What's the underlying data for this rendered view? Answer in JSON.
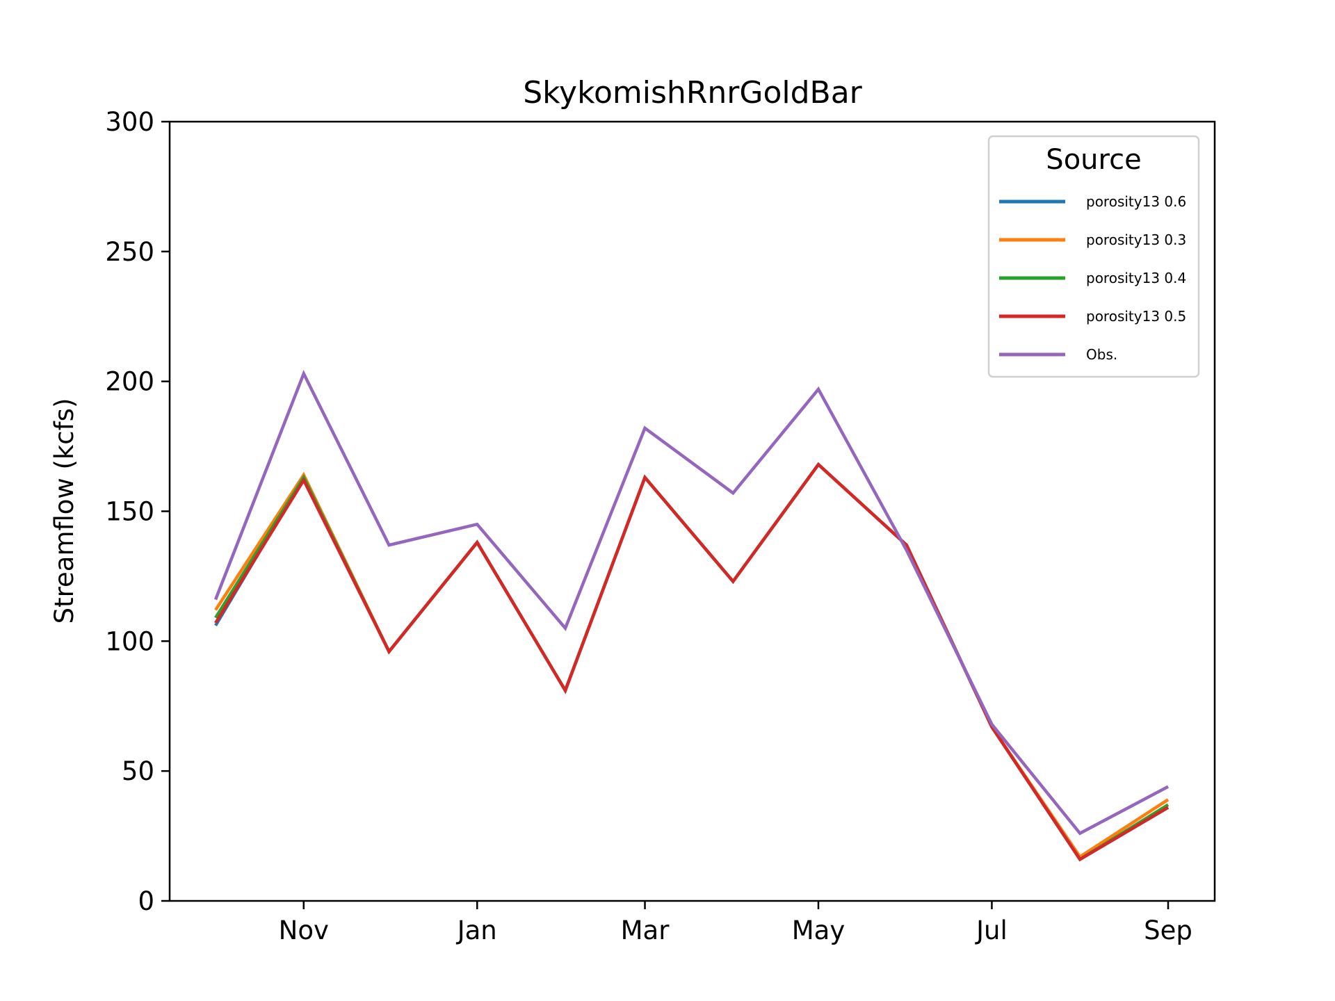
{
  "chart_data": {
    "type": "line",
    "title": "SkykomishRnrGoldBar",
    "xlabel": "",
    "ylabel": "Streamflow (kcfs)",
    "ylim": [
      0,
      300
    ],
    "yticks": [
      0,
      50,
      100,
      150,
      200,
      250,
      300
    ],
    "x": [
      "2000-10-01",
      "2000-11-01",
      "2000-12-01",
      "2001-01-01",
      "2001-02-01",
      "2001-03-01",
      "2001-04-01",
      "2001-05-01",
      "2001-06-01",
      "2001-07-01",
      "2001-08-01",
      "2001-09-01"
    ],
    "xticks": [
      {
        "date": "2000-11-01",
        "label": "Nov"
      },
      {
        "date": "2001-01-01",
        "label": "Jan"
      },
      {
        "date": "2001-03-01",
        "label": "Mar"
      },
      {
        "date": "2001-05-01",
        "label": "May"
      },
      {
        "date": "2001-07-01",
        "label": "Jul"
      },
      {
        "date": "2001-09-01",
        "label": "Sep"
      }
    ],
    "legend": {
      "title": "Source",
      "placement": "top-right"
    },
    "series": [
      {
        "name": "porosity13 0.6",
        "color": "#1f77b4",
        "values": [
          106,
          163,
          96,
          138,
          81,
          163,
          123,
          168,
          137,
          67,
          16,
          36
        ]
      },
      {
        "name": "porosity13 0.3",
        "color": "#ff7f0e",
        "values": [
          112,
          164,
          96,
          138,
          81,
          163,
          123,
          168,
          137,
          67,
          17,
          39
        ]
      },
      {
        "name": "porosity13 0.4",
        "color": "#2ca02c",
        "values": [
          109,
          163,
          96,
          138,
          81,
          163,
          123,
          168,
          137,
          67,
          16,
          37
        ]
      },
      {
        "name": "porosity13 0.5",
        "color": "#d62728",
        "values": [
          107,
          162,
          96,
          138,
          81,
          163,
          123,
          168,
          137,
          67,
          16,
          36
        ]
      },
      {
        "name": "Obs.",
        "color": "#9467bd",
        "values": [
          116,
          203,
          137,
          145,
          105,
          182,
          157,
          197,
          135,
          68,
          26,
          44
        ]
      }
    ]
  }
}
